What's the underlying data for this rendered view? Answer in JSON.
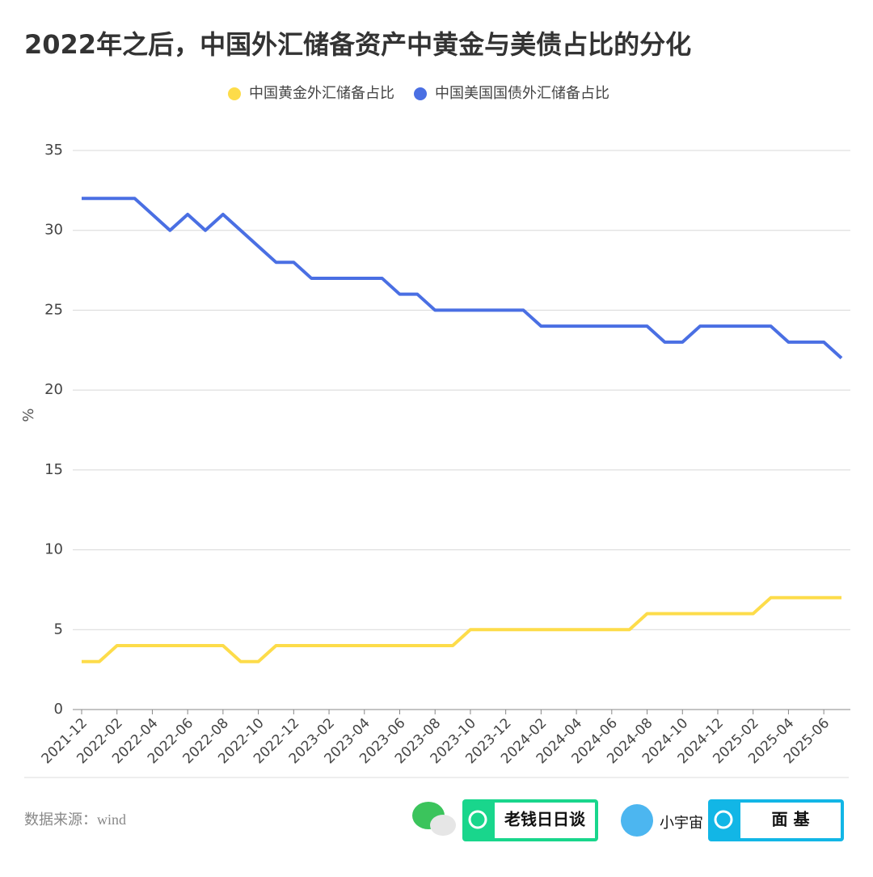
{
  "chart_data": {
    "type": "line",
    "title": "2022年之后，中国外汇储备资产中黄金与美债占比的分化",
    "y_label": "%",
    "categories": [
      "2021-12",
      null,
      "2022-02",
      null,
      "2022-04",
      null,
      "2022-06",
      null,
      "2022-08",
      null,
      "2022-10",
      null,
      "2022-12",
      null,
      "2023-02",
      null,
      "2023-04",
      null,
      "2023-06",
      null,
      "2023-08",
      null,
      "2023-10",
      null,
      "2023-12",
      null,
      "2024-02",
      null,
      "2024-04",
      null,
      "2024-06",
      null,
      "2024-08",
      null,
      "2024-10",
      null,
      "2024-12",
      null,
      "2025-02",
      null,
      "2025-04",
      null,
      "2025-06",
      null
    ],
    "series": [
      {
        "name": "中国黄金外汇储备占比",
        "color": "#fddc4a",
        "values": [
          3,
          3,
          4,
          4,
          4,
          4,
          4,
          4,
          4,
          3,
          3,
          4,
          4,
          4,
          4,
          4,
          4,
          4,
          4,
          4,
          4,
          4,
          5,
          5,
          5,
          5,
          5,
          5,
          5,
          5,
          5,
          5,
          6,
          6,
          6,
          6,
          6,
          6,
          6,
          7,
          7,
          7,
          7,
          7
        ]
      },
      {
        "name": "中国美国国债外汇储备占比",
        "color": "#4a6fe3",
        "values": [
          32,
          32,
          32,
          32,
          31,
          30,
          31,
          30,
          31,
          30,
          29,
          28,
          28,
          27,
          27,
          27,
          27,
          27,
          26,
          26,
          25,
          25,
          25,
          25,
          25,
          25,
          24,
          24,
          24,
          24,
          24,
          24,
          24,
          23,
          23,
          24,
          24,
          24,
          24,
          24,
          23,
          23,
          23,
          22
        ]
      }
    ],
    "ylim": [
      0,
      35
    ],
    "yticks": [
      0,
      5,
      10,
      15,
      20,
      25,
      30,
      35
    ],
    "grid": true,
    "legend": "top"
  },
  "footer": {
    "source": "数据来源：wind",
    "badge1": "老钱日日谈",
    "podcast": "小宇宙",
    "badge2": "面 基"
  }
}
